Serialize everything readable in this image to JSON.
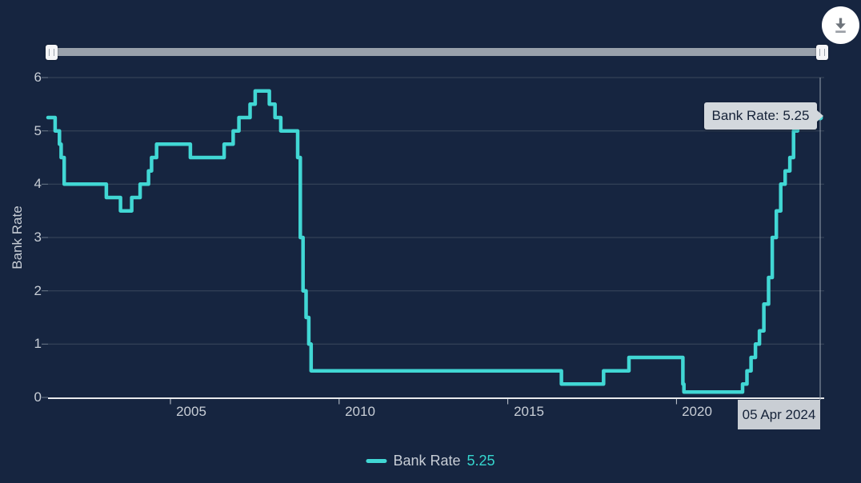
{
  "colors": {
    "background": "#162540",
    "series": "#41D7D4",
    "grid": "#3A485C",
    "axis_line": "#E8EAED",
    "tick_label": "#C8CED6",
    "crosshair": "#96A1AE",
    "tooltip_bg": "#D3D8DD",
    "tooltip_text": "#152238",
    "date_label_bg": "#C9CED4",
    "slider_track": "#99A1AB"
  },
  "toolbar": {
    "download_icon": "download-icon"
  },
  "chart_data": {
    "type": "line",
    "step": "left",
    "title": "",
    "xlabel": "",
    "ylabel": "Bank Rate",
    "xlim": [
      2001.37,
      2024.26
    ],
    "ylim": [
      0,
      6
    ],
    "y_ticks": [
      0,
      1,
      2,
      3,
      4,
      5,
      6
    ],
    "x_ticks": [
      2005,
      2010,
      2015,
      2020
    ],
    "grid": true,
    "series": [
      {
        "name": "Bank Rate",
        "color": "#41D7D4",
        "points": [
          [
            2001.37,
            5.25
          ],
          [
            2001.58,
            5.0
          ],
          [
            2001.71,
            4.75
          ],
          [
            2001.76,
            4.5
          ],
          [
            2001.85,
            4.0
          ],
          [
            2003.1,
            3.75
          ],
          [
            2003.52,
            3.5
          ],
          [
            2003.85,
            3.75
          ],
          [
            2004.1,
            4.0
          ],
          [
            2004.35,
            4.25
          ],
          [
            2004.44,
            4.5
          ],
          [
            2004.59,
            4.75
          ],
          [
            2005.59,
            4.5
          ],
          [
            2006.59,
            4.75
          ],
          [
            2006.86,
            5.0
          ],
          [
            2007.03,
            5.25
          ],
          [
            2007.36,
            5.5
          ],
          [
            2007.51,
            5.75
          ],
          [
            2007.93,
            5.5
          ],
          [
            2008.1,
            5.25
          ],
          [
            2008.27,
            5.0
          ],
          [
            2008.77,
            4.5
          ],
          [
            2008.85,
            3.0
          ],
          [
            2008.93,
            2.0
          ],
          [
            2009.02,
            1.5
          ],
          [
            2009.1,
            1.0
          ],
          [
            2009.17,
            0.5
          ],
          [
            2016.59,
            0.25
          ],
          [
            2017.84,
            0.5
          ],
          [
            2018.59,
            0.75
          ],
          [
            2020.19,
            0.25
          ],
          [
            2020.22,
            0.1
          ],
          [
            2021.96,
            0.25
          ],
          [
            2022.09,
            0.5
          ],
          [
            2022.21,
            0.75
          ],
          [
            2022.34,
            1.0
          ],
          [
            2022.46,
            1.25
          ],
          [
            2022.59,
            1.75
          ],
          [
            2022.73,
            2.25
          ],
          [
            2022.84,
            3.0
          ],
          [
            2022.96,
            3.5
          ],
          [
            2023.09,
            4.0
          ],
          [
            2023.22,
            4.25
          ],
          [
            2023.36,
            4.5
          ],
          [
            2023.47,
            5.0
          ],
          [
            2023.59,
            5.25
          ],
          [
            2024.26,
            5.25
          ]
        ]
      }
    ],
    "legend": {
      "position": "bottom-center",
      "label": "Bank Rate",
      "value": "5.25"
    },
    "tooltip": {
      "text": "Bank Rate: 5.25"
    },
    "crosshair_date": "05 Apr 2024",
    "latest": {
      "date": "05 Apr 2024",
      "rate": 5.25
    }
  }
}
